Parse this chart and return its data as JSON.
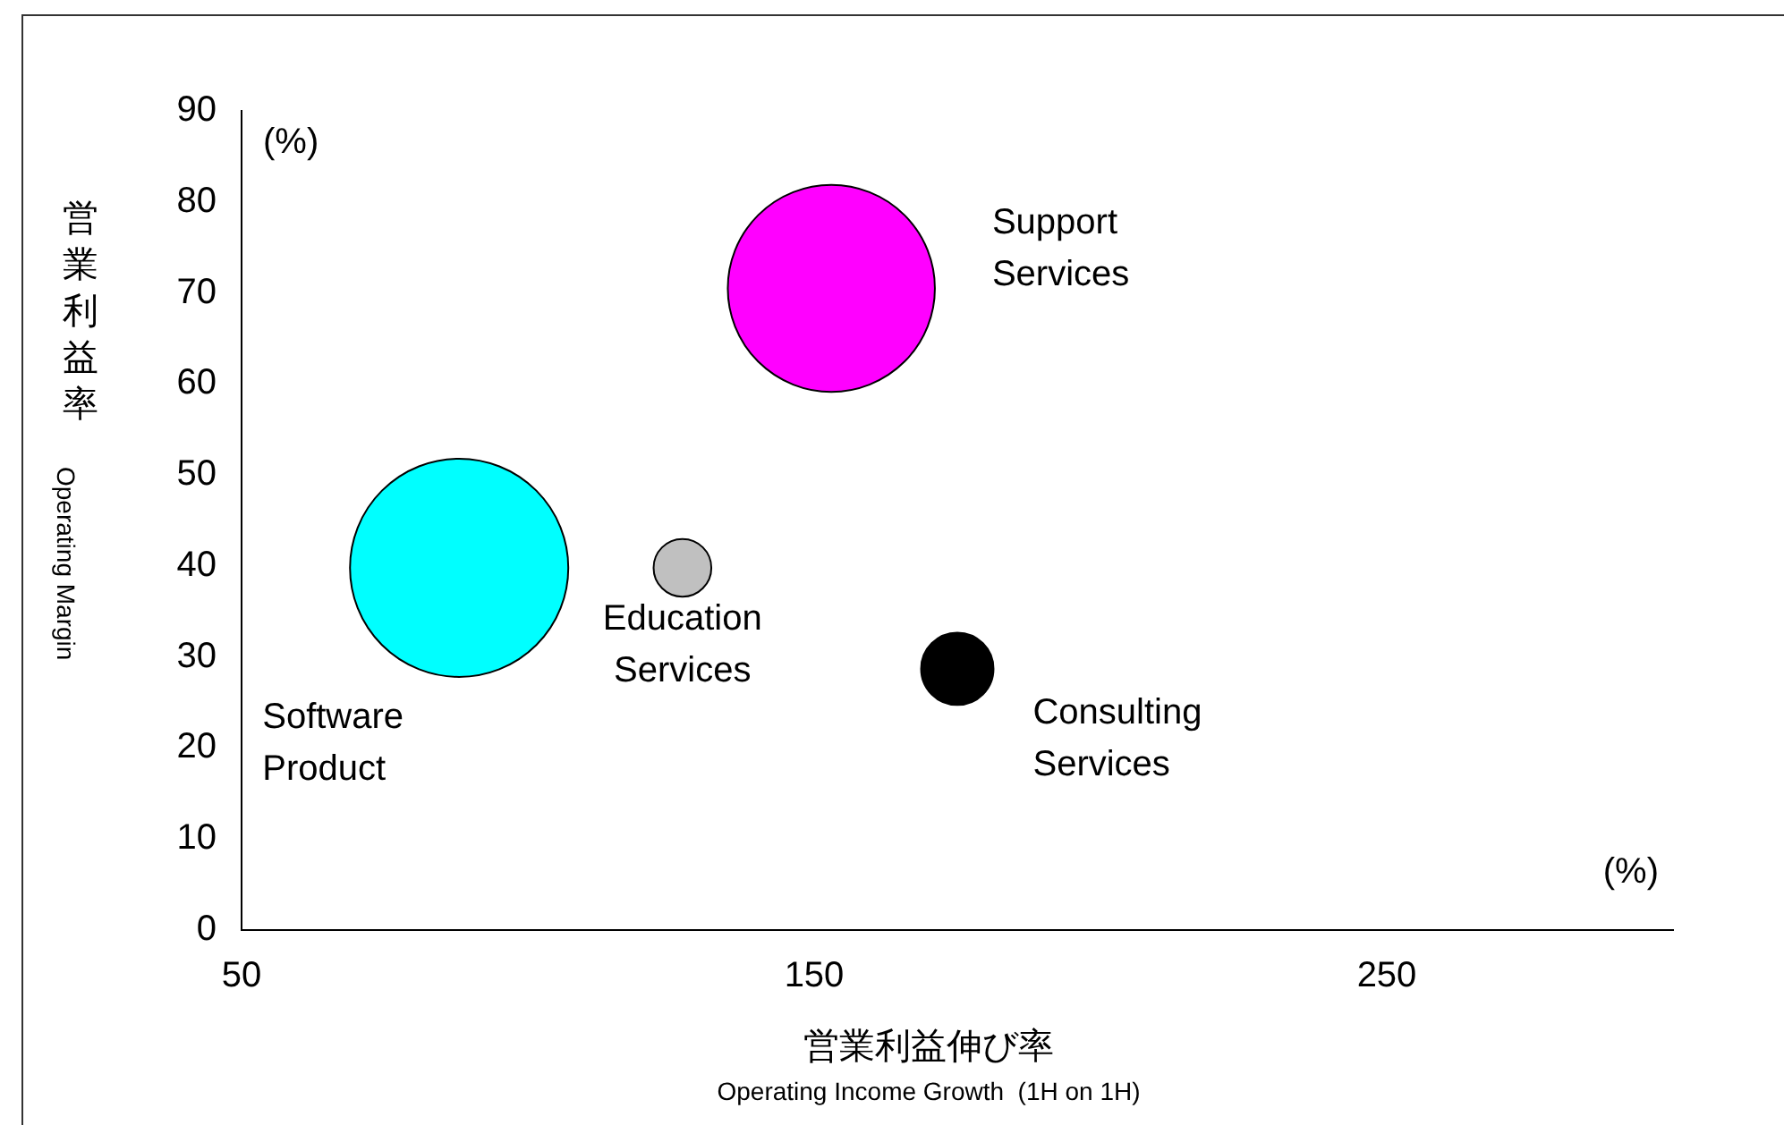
{
  "chart_data": {
    "type": "bubble",
    "xlabel": "営業利益伸び率\nOperating Income Growth  (1H on 1H)",
    "ylabel": "営業利益率\nOperating Margin",
    "series": [
      {
        "name": "Support Services",
        "color": "#ff00ff",
        "x": [
          153
        ],
        "values": [
          70.5
        ],
        "sizes": [
          0.9
        ]
      },
      {
        "name": "Software Product",
        "color": "#00ffff",
        "x": [
          88
        ],
        "values": [
          39.8
        ],
        "sizes": [
          1
        ]
      },
      {
        "name": "Education Services",
        "color": "#c0c0c0",
        "x": [
          127
        ],
        "values": [
          39.8
        ],
        "sizes": [
          0.07
        ]
      },
      {
        "name": "Consulting Services",
        "color": "#000000",
        "x": [
          175
        ],
        "values": [
          28.7
        ],
        "sizes": [
          0.11
        ]
      }
    ],
    "xlim": [
      50,
      300
    ],
    "xticks": [
      50,
      150,
      250
    ],
    "ylim": [
      0,
      90
    ],
    "yticks": [
      0,
      10,
      20,
      30,
      40,
      50,
      60,
      70,
      80,
      90
    ],
    "annotations": [
      "(%)",
      "(%)"
    ],
    "grid": false,
    "legend": false
  }
}
